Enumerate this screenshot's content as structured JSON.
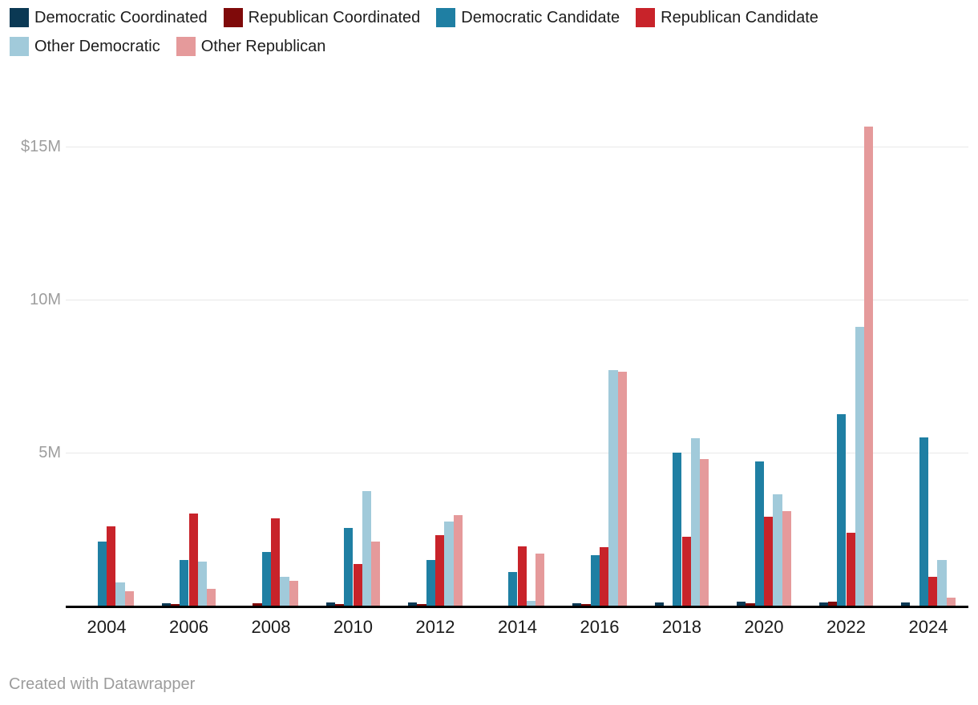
{
  "legend": {
    "items": [
      {
        "label": "Democratic Coordinated",
        "color": "#0b3954"
      },
      {
        "label": "Republican Coordinated",
        "color": "#7f0a0a"
      },
      {
        "label": "Democratic Candidate",
        "color": "#1f7fa3"
      },
      {
        "label": "Republican Candidate",
        "color": "#c8232a"
      },
      {
        "label": "Other Democratic",
        "color": "#a1cada"
      },
      {
        "label": "Other Republican",
        "color": "#e59a9b"
      }
    ]
  },
  "chart_data": {
    "type": "bar",
    "categories": [
      "2004",
      "2006",
      "2008",
      "2010",
      "2012",
      "2014",
      "2016",
      "2018",
      "2020",
      "2022",
      "2024"
    ],
    "series": [
      {
        "name": "Democratic Coordinated",
        "color": "#0b3954",
        "values": [
          0,
          0.09,
          0,
          0.1,
          0.1,
          0,
          0.09,
          0.1,
          0.12,
          0.1,
          0.1
        ]
      },
      {
        "name": "Republican Coordinated",
        "color": "#7f0a0a",
        "values": [
          0,
          0.05,
          0.09,
          0.06,
          0.06,
          0,
          0.05,
          0,
          0.09,
          0.12,
          0
        ]
      },
      {
        "name": "Democratic Candidate",
        "color": "#1f7fa3",
        "values": [
          2.1,
          1.5,
          1.75,
          2.55,
          1.5,
          1.1,
          1.65,
          5.0,
          4.7,
          6.25,
          5.5
        ]
      },
      {
        "name": "Republican Candidate",
        "color": "#c8232a",
        "values": [
          2.6,
          3.0,
          2.85,
          1.35,
          2.3,
          1.95,
          1.9,
          2.25,
          2.9,
          2.38,
          0.95
        ]
      },
      {
        "name": "Other Democratic",
        "color": "#a1cada",
        "values": [
          0.75,
          1.45,
          0.95,
          3.75,
          2.75,
          0.15,
          7.7,
          5.47,
          3.65,
          9.1,
          1.5
        ]
      },
      {
        "name": "Other Republican",
        "color": "#e59a9b",
        "values": [
          0.48,
          0.55,
          0.8,
          2.1,
          2.95,
          1.7,
          7.65,
          4.8,
          3.1,
          15.65,
          0.25
        ]
      }
    ],
    "title": "",
    "xlabel": "",
    "ylabel": "",
    "y_ticks": [
      {
        "value": 5,
        "label": "5M"
      },
      {
        "value": 10,
        "label": "10M"
      },
      {
        "value": 15,
        "label": "$15M"
      }
    ],
    "ylim": [
      0,
      16.6
    ],
    "grid": true,
    "legend_position": "top"
  },
  "footer": {
    "credit": "Created with Datawrapper"
  }
}
